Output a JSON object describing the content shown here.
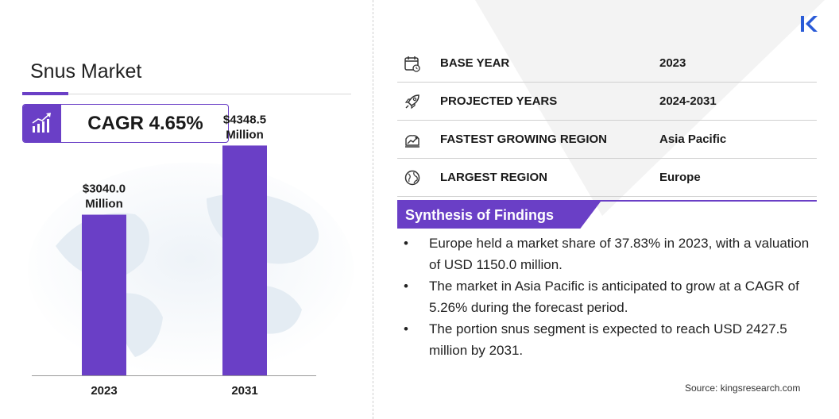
{
  "colors": {
    "accent": "#6a3fc6",
    "text": "#1a1a1a"
  },
  "title": "Snus Market",
  "cagr": "CAGR 4.65%",
  "chart_data": {
    "type": "bar",
    "categories": [
      "2023",
      "2031"
    ],
    "values": [
      3040.0,
      4348.5
    ],
    "data_labels": [
      [
        "$3040.0",
        "Million"
      ],
      [
        "$4348.5",
        "Million"
      ]
    ],
    "title": "",
    "xlabel": "",
    "ylabel": "",
    "ylim": [
      0,
      5000
    ],
    "grid": false,
    "bar_color": "#6a3fc6"
  },
  "info": [
    {
      "icon": "calendar-icon",
      "label": "BASE YEAR",
      "value": "2023"
    },
    {
      "icon": "rocket-icon",
      "label": "PROJECTED YEARS",
      "value": "2024-2031"
    },
    {
      "icon": "growth-region-icon",
      "label": "FASTEST GROWING REGION",
      "value": "Asia Pacific"
    },
    {
      "icon": "globe-icon",
      "label": "LARGEST REGION",
      "value": "Europe"
    }
  ],
  "synthesis": {
    "heading": "Synthesis of Findings",
    "bullet": "•",
    "items": [
      "Europe held a market share of 37.83% in 2023, with a valuation of USD 1150.0 million.",
      "The market in Asia Pacific is anticipated to grow at a CAGR of 5.26% during the forecast period.",
      "The portion snus segment is expected to reach USD 2427.5 million by 2031."
    ]
  },
  "source": "Source:  kingsresearch.com"
}
